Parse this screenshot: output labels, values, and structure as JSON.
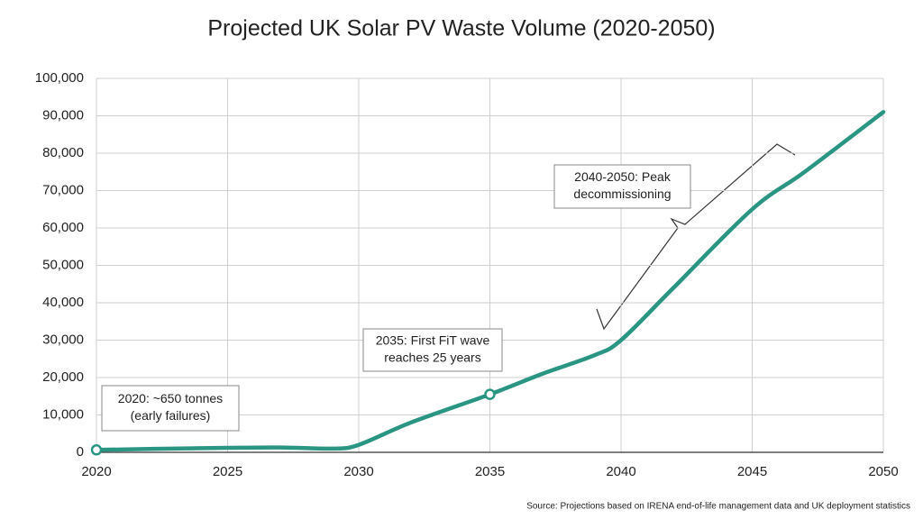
{
  "chart_data": {
    "type": "line",
    "title": "Projected UK Solar PV Waste Volume (2020-2050)",
    "source": "Source: Projections based on IRENA end-of-life management data and UK deployment statistics",
    "x": [
      2020,
      2022,
      2025,
      2027,
      2029,
      2030,
      2032,
      2035,
      2037,
      2039,
      2040,
      2042,
      2045,
      2047,
      2050
    ],
    "series": [
      {
        "name": "Solar PV waste",
        "color": "#2a9583",
        "values": [
          650,
          900,
          1200,
          1300,
          1000,
          2000,
          8000,
          15500,
          21000,
          26000,
          30000,
          44000,
          65000,
          75000,
          91000
        ]
      }
    ],
    "xlim": [
      2020,
      2050
    ],
    "xticks": [
      2020,
      2025,
      2030,
      2035,
      2040,
      2045,
      2050
    ],
    "ylim": [
      0,
      100000
    ],
    "yticks": [
      0,
      {
        "value": 10000,
        "label": "10,000"
      },
      {
        "value": 20000,
        "label": "20,000"
      },
      {
        "value": 30000,
        "label": "30,000"
      },
      {
        "value": 40000,
        "label": "40,000"
      },
      {
        "value": 50000,
        "label": "50,000"
      },
      {
        "value": 60000,
        "label": "60,000"
      },
      {
        "value": 70000,
        "label": "70,000"
      },
      {
        "value": 80000,
        "label": "80,000"
      },
      {
        "value": 90000,
        "label": "90,000"
      },
      {
        "value": 100000,
        "label": "100,000"
      }
    ],
    "grid": true,
    "annotations": [
      {
        "lines": [
          "2020: ~650 tonnes",
          "(early failures)"
        ]
      },
      {
        "lines": [
          "2035: First FiT wave",
          "reaches 25 years"
        ]
      },
      {
        "lines": [
          "2040-2050: Peak",
          "decommissioning"
        ]
      }
    ]
  }
}
